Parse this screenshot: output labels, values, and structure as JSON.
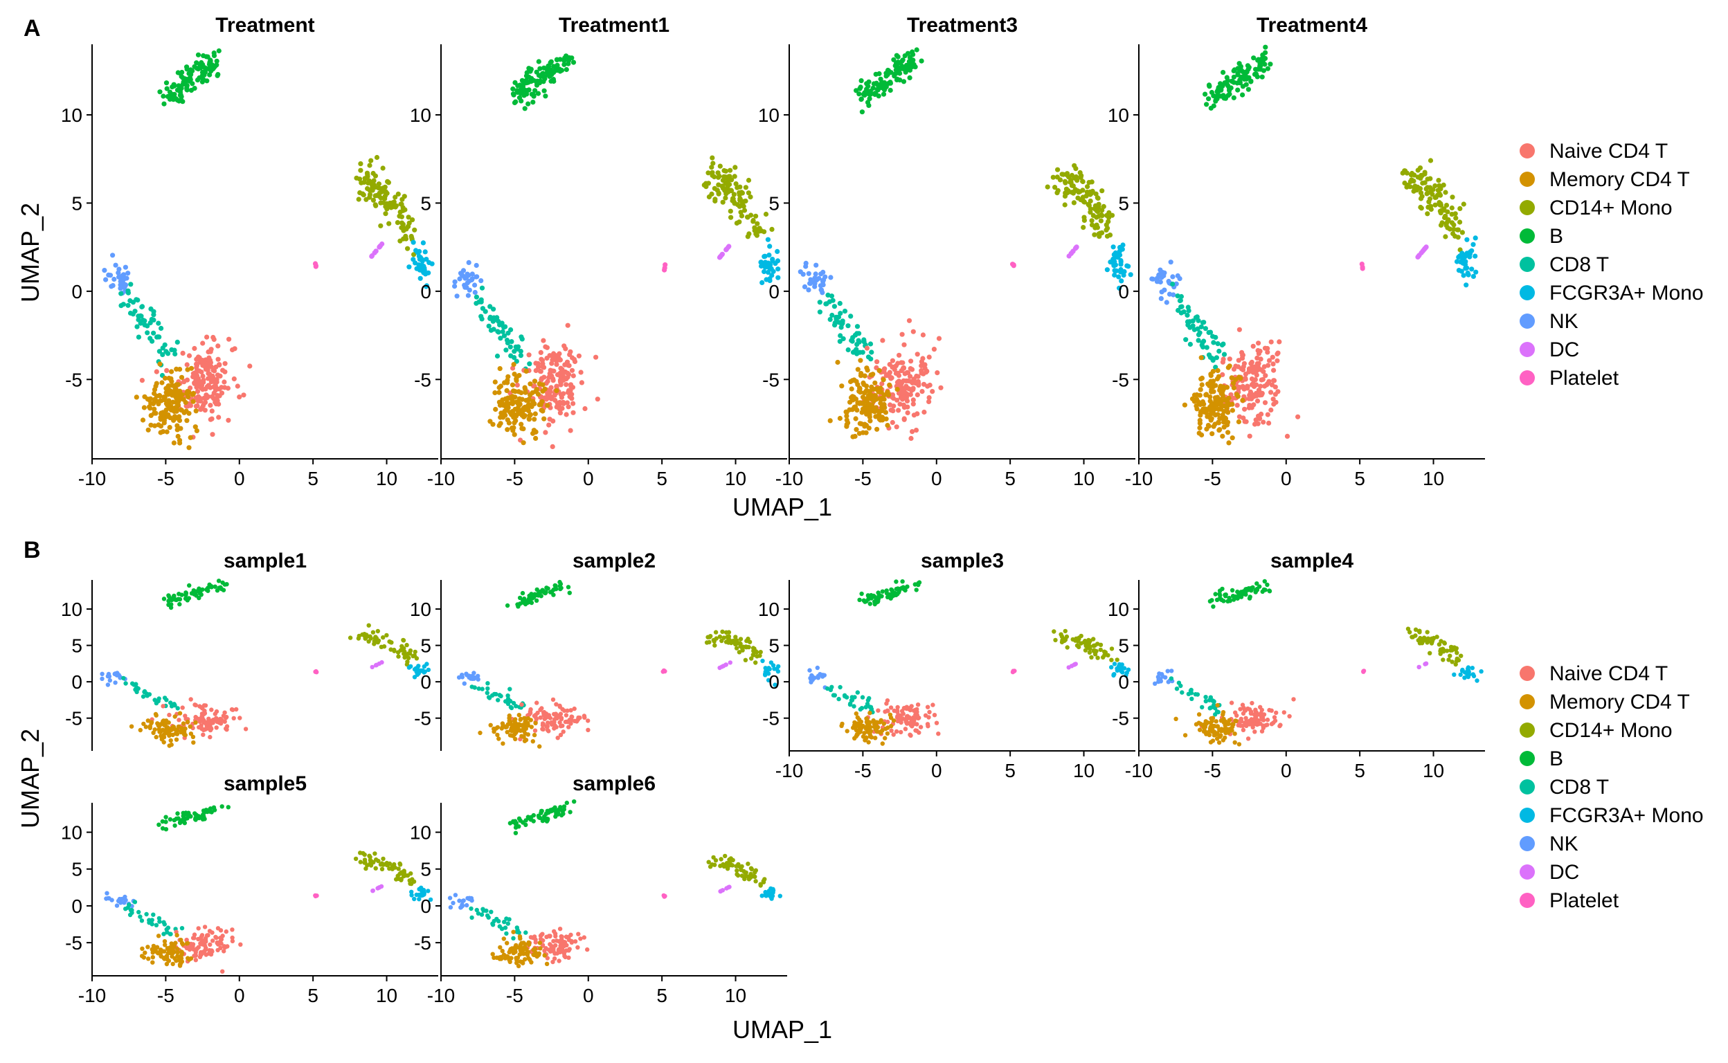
{
  "figure": {
    "panel_tags": [
      "A",
      "B"
    ]
  },
  "colors": {
    "Naive CD4 T": "#F8766D",
    "Memory CD4 T": "#D39200",
    "CD14+ Mono": "#93AA00",
    "B": "#00BA38",
    "CD8 T": "#00C19F",
    "FCGR3A+ Mono": "#00B9E3",
    "NK": "#619CFF",
    "DC": "#DB72FB",
    "Platelet": "#FF61C3"
  },
  "chart_data": [
    {
      "type": "scatter",
      "panel": "A",
      "facets": [
        "Treatment",
        "Treatment1",
        "Treatment3",
        "Treatment4"
      ],
      "xlabel": "UMAP_1",
      "ylabel": "UMAP_2",
      "xlim": [
        -10,
        13.5
      ],
      "ylim": [
        -9.5,
        14
      ],
      "xticks": [
        "-10",
        "-5",
        "0",
        "5",
        "10"
      ],
      "yticks": [
        "-5",
        "0",
        "5",
        "10"
      ],
      "legend": {
        "placement": "right",
        "entries": [
          "Naive CD4 T",
          "Memory CD4 T",
          "CD14+ Mono",
          "B",
          "CD8 T",
          "FCGR3A+ Mono",
          "NK",
          "DC",
          "Platelet"
        ]
      },
      "cluster_centers": [
        {
          "cluster": "B",
          "x": -3.5,
          "y": 12
        },
        {
          "cluster": "CD14+ Mono",
          "x": 10,
          "y": 5.2
        },
        {
          "cluster": "FCGR3A+ Mono",
          "x": 12.3,
          "y": 1.7
        },
        {
          "cluster": "DC",
          "x": 9.4,
          "y": 2.3
        },
        {
          "cluster": "Platelet",
          "x": 5.2,
          "y": 1.4
        },
        {
          "cluster": "NK",
          "x": -8.2,
          "y": 0.6
        },
        {
          "cluster": "CD8 T",
          "x": -6.3,
          "y": -2.8
        },
        {
          "cluster": "Naive CD4 T",
          "x": -2.4,
          "y": -5.2
        },
        {
          "cluster": "Memory CD4 T",
          "x": -4.8,
          "y": -6.4
        }
      ]
    },
    {
      "type": "scatter",
      "panel": "B",
      "facets": [
        "sample1",
        "sample2",
        "sample3",
        "sample4",
        "sample5",
        "sample6"
      ],
      "xlabel": "UMAP_1",
      "ylabel": "UMAP_2",
      "xlim": [
        -10,
        13.5
      ],
      "ylim": [
        -9.5,
        14
      ],
      "xticks": [
        "-10",
        "-5",
        "0",
        "5",
        "10"
      ],
      "yticks": [
        "-5",
        "0",
        "5",
        "10"
      ],
      "legend": {
        "placement": "right",
        "entries": [
          "Naive CD4 T",
          "Memory CD4 T",
          "CD14+ Mono",
          "B",
          "CD8 T",
          "FCGR3A+ Mono",
          "NK",
          "DC",
          "Platelet"
        ]
      },
      "cluster_centers": [
        {
          "cluster": "B",
          "x": -3.5,
          "y": 12
        },
        {
          "cluster": "CD14+ Mono",
          "x": 10,
          "y": 5.2
        },
        {
          "cluster": "FCGR3A+ Mono",
          "x": 12.3,
          "y": 1.7
        },
        {
          "cluster": "DC",
          "x": 9.4,
          "y": 2.3
        },
        {
          "cluster": "Platelet",
          "x": 5.2,
          "y": 1.4
        },
        {
          "cluster": "NK",
          "x": -8.2,
          "y": 0.6
        },
        {
          "cluster": "CD8 T",
          "x": -6.3,
          "y": -2.8
        },
        {
          "cluster": "Naive CD4 T",
          "x": -2.4,
          "y": -5.2
        },
        {
          "cluster": "Memory CD4 T",
          "x": -4.8,
          "y": -6.4
        }
      ]
    }
  ]
}
